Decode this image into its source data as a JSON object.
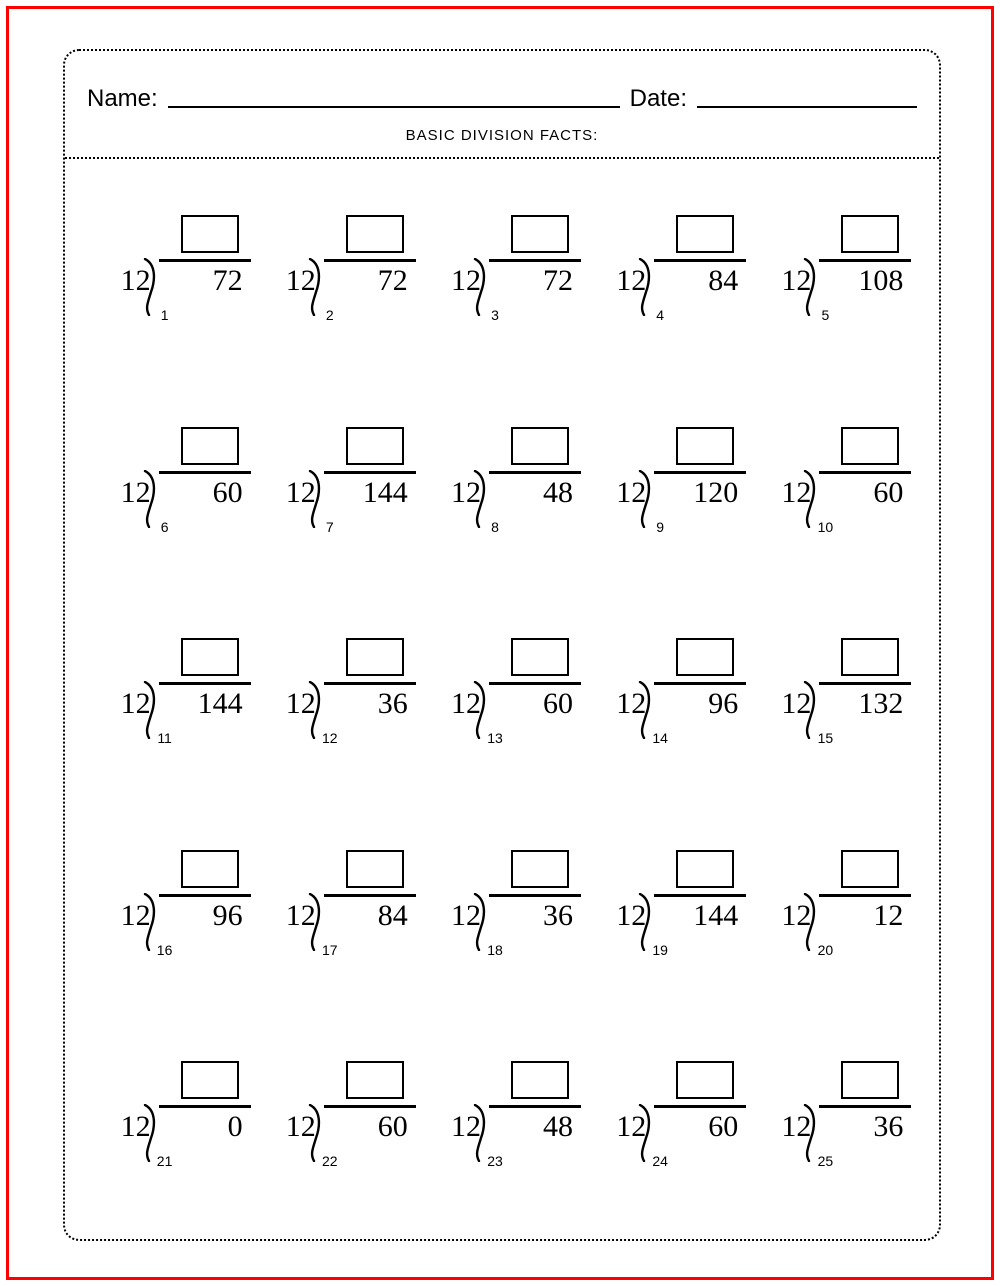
{
  "colors": {
    "frame_border": "#ff0000",
    "page_border": "#000000",
    "text": "#000000",
    "background": "#ffffff"
  },
  "typography": {
    "header_font": "Verdana",
    "number_font": "Times New Roman",
    "header_fontsize": 24,
    "subtitle_fontsize": 15,
    "number_fontsize": 30,
    "problem_label_fontsize": 14
  },
  "header": {
    "name_label": "Name:",
    "date_label": "Date:",
    "subtitle": "BASIC DIVISION FACTS:"
  },
  "layout": {
    "rows": 5,
    "cols": 5,
    "answer_box": {
      "width": 58,
      "height": 38,
      "border_width": 2
    },
    "vinculum_width": 92
  },
  "problems": [
    {
      "n": "1",
      "divisor": "12",
      "dividend": "72"
    },
    {
      "n": "2",
      "divisor": "12",
      "dividend": "72"
    },
    {
      "n": "3",
      "divisor": "12",
      "dividend": "72"
    },
    {
      "n": "4",
      "divisor": "12",
      "dividend": "84"
    },
    {
      "n": "5",
      "divisor": "12",
      "dividend": "108"
    },
    {
      "n": "6",
      "divisor": "12",
      "dividend": "60"
    },
    {
      "n": "7",
      "divisor": "12",
      "dividend": "144"
    },
    {
      "n": "8",
      "divisor": "12",
      "dividend": "48"
    },
    {
      "n": "9",
      "divisor": "12",
      "dividend": "120"
    },
    {
      "n": "10",
      "divisor": "12",
      "dividend": "60"
    },
    {
      "n": "11",
      "divisor": "12",
      "dividend": "144"
    },
    {
      "n": "12",
      "divisor": "12",
      "dividend": "36"
    },
    {
      "n": "13",
      "divisor": "12",
      "dividend": "60"
    },
    {
      "n": "14",
      "divisor": "12",
      "dividend": "96"
    },
    {
      "n": "15",
      "divisor": "12",
      "dividend": "132"
    },
    {
      "n": "16",
      "divisor": "12",
      "dividend": "96"
    },
    {
      "n": "17",
      "divisor": "12",
      "dividend": "84"
    },
    {
      "n": "18",
      "divisor": "12",
      "dividend": "36"
    },
    {
      "n": "19",
      "divisor": "12",
      "dividend": "144"
    },
    {
      "n": "20",
      "divisor": "12",
      "dividend": "12"
    },
    {
      "n": "21",
      "divisor": "12",
      "dividend": "0"
    },
    {
      "n": "22",
      "divisor": "12",
      "dividend": "60"
    },
    {
      "n": "23",
      "divisor": "12",
      "dividend": "48"
    },
    {
      "n": "24",
      "divisor": "12",
      "dividend": "60"
    },
    {
      "n": "25",
      "divisor": "12",
      "dividend": "36"
    }
  ]
}
